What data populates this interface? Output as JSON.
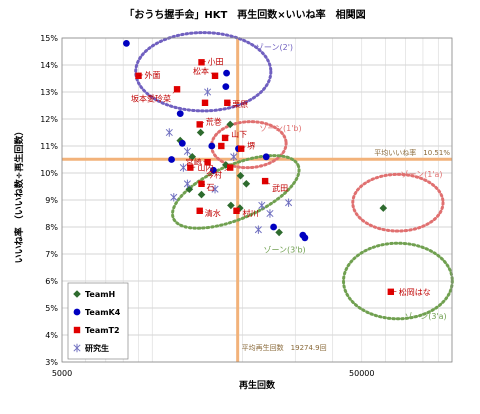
{
  "chart_data": {
    "type": "scatter",
    "title": "「おうち握手会」HKT　再生回数×いいね率　相関図",
    "xlabel": "再生回数",
    "ylabel": "いいね率 （いいね数÷再生回数）",
    "x_scale": "log",
    "xlim": [
      5000,
      100000
    ],
    "ylim": [
      3,
      15
    ],
    "x_ticks": [
      5000,
      50000
    ],
    "x_tick_labels": [
      "5000",
      "50000"
    ],
    "y_ticks": [
      3,
      4,
      5,
      6,
      7,
      8,
      9,
      10,
      11,
      12,
      13,
      14,
      15
    ],
    "y_tick_labels": [
      "3%",
      "4%",
      "5%",
      "6%",
      "7%",
      "8%",
      "9%",
      "10%",
      "11%",
      "12%",
      "13%",
      "14%",
      "15%"
    ],
    "grid": true,
    "legend_position": "bottom-left",
    "reference_lines": {
      "x": {
        "value": 19274.9,
        "label": "平均再生回数　19274.9回"
      },
      "y": {
        "value": 10.51,
        "label": "平均いいね率　10.51%"
      }
    },
    "zones": [
      {
        "label": "ゾーン(2')",
        "color": "#7060c0"
      },
      {
        "label": "ゾーン(1'b)",
        "color": "#e07070"
      },
      {
        "label": "ゾーン(1'a)",
        "color": "#e07070"
      },
      {
        "label": "ゾーン(3'b)",
        "color": "#70a050"
      },
      {
        "label": "ゾーン(3'a)",
        "color": "#70a050"
      }
    ],
    "series": [
      {
        "name": "TeamH",
        "color": "#2e6b2e",
        "marker": "diamond",
        "points": [
          {
            "x": 14500,
            "y": 11.5
          },
          {
            "x": 18200,
            "y": 11.8
          },
          {
            "x": 12400,
            "y": 11.2
          },
          {
            "x": 13600,
            "y": 10.6
          },
          {
            "x": 17600,
            "y": 10.3
          },
          {
            "x": 19700,
            "y": 9.9
          },
          {
            "x": 14600,
            "y": 9.2
          },
          {
            "x": 18300,
            "y": 8.8
          },
          {
            "x": 19600,
            "y": 8.7
          },
          {
            "x": 26500,
            "y": 7.8
          },
          {
            "x": 59000,
            "y": 8.7
          },
          {
            "x": 20600,
            "y": 9.6
          },
          {
            "x": 13300,
            "y": 9.4
          }
        ]
      },
      {
        "name": "TeamK4",
        "color": "#0000c0",
        "marker": "circle",
        "points": [
          {
            "x": 8200,
            "y": 14.8
          },
          {
            "x": 17700,
            "y": 13.7
          },
          {
            "x": 17600,
            "y": 13.2
          },
          {
            "x": 12400,
            "y": 12.2
          },
          {
            "x": 19400,
            "y": 10.9
          },
          {
            "x": 11600,
            "y": 10.5
          },
          {
            "x": 16000,
            "y": 10.1
          },
          {
            "x": 25400,
            "y": 8.0
          },
          {
            "x": 31800,
            "y": 7.7
          },
          {
            "x": 32300,
            "y": 7.6
          },
          {
            "x": 12600,
            "y": 11.1
          },
          {
            "x": 24000,
            "y": 10.6
          },
          {
            "x": 15800,
            "y": 11.0
          }
        ]
      },
      {
        "name": "TeamT2",
        "color": "#e00000",
        "marker": "square",
        "points": [
          {
            "x": 14600,
            "y": 14.1,
            "label": "小田"
          },
          {
            "x": 16200,
            "y": 13.6,
            "label": "松本"
          },
          {
            "x": 9000,
            "y": 13.6,
            "label": "外薗"
          },
          {
            "x": 12100,
            "y": 13.1,
            "label": "坂本愛玲菜"
          },
          {
            "x": 17800,
            "y": 12.6,
            "label": "栗原"
          },
          {
            "x": 14400,
            "y": 11.8,
            "label": "荒巻"
          },
          {
            "x": 17500,
            "y": 11.3,
            "label": "山下"
          },
          {
            "x": 19800,
            "y": 10.9,
            "label": "堺"
          },
          {
            "x": 15300,
            "y": 10.4,
            "label": "宮崎"
          },
          {
            "x": 13400,
            "y": 10.2,
            "label": "山内"
          },
          {
            "x": 18200,
            "y": 10.2,
            "label": "今村"
          },
          {
            "x": 14600,
            "y": 9.6,
            "label": "石"
          },
          {
            "x": 23800,
            "y": 9.7,
            "label": "武田"
          },
          {
            "x": 14400,
            "y": 8.6,
            "label": "清水"
          },
          {
            "x": 19100,
            "y": 8.6,
            "label": "村川"
          },
          {
            "x": 62500,
            "y": 5.6,
            "label": "松岡はな"
          },
          {
            "x": 17000,
            "y": 11.0
          },
          {
            "x": 15000,
            "y": 12.6
          }
        ]
      },
      {
        "name": "研究生",
        "color": "#7070c0",
        "marker": "asterisk",
        "points": [
          {
            "x": 15300,
            "y": 13.0
          },
          {
            "x": 11400,
            "y": 11.5
          },
          {
            "x": 13100,
            "y": 10.8
          },
          {
            "x": 12700,
            "y": 10.2
          },
          {
            "x": 13100,
            "y": 9.6
          },
          {
            "x": 11800,
            "y": 9.1
          },
          {
            "x": 23200,
            "y": 8.8
          },
          {
            "x": 22600,
            "y": 7.9
          },
          {
            "x": 24700,
            "y": 8.5
          },
          {
            "x": 28500,
            "y": 8.9
          },
          {
            "x": 18700,
            "y": 10.6
          },
          {
            "x": 16200,
            "y": 9.4
          }
        ]
      }
    ]
  }
}
